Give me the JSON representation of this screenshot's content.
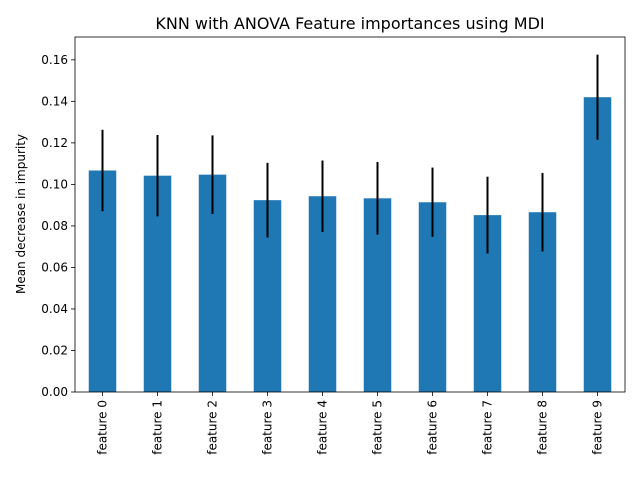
{
  "chart_data": {
    "type": "bar",
    "title": "KNN with ANOVA Feature importances using MDI",
    "xlabel": "",
    "ylabel": "Mean decrease in impurity",
    "categories": [
      "feature 0",
      "feature 1",
      "feature 2",
      "feature 3",
      "feature 4",
      "feature 5",
      "feature 6",
      "feature 7",
      "feature 8",
      "feature 9"
    ],
    "values": [
      0.1067,
      0.1042,
      0.1047,
      0.0924,
      0.0943,
      0.0933,
      0.0914,
      0.0852,
      0.0866,
      0.142
    ],
    "error": [
      0.0196,
      0.0196,
      0.0189,
      0.018,
      0.0172,
      0.0175,
      0.0167,
      0.0185,
      0.0189,
      0.0205
    ],
    "ylim": [
      0,
      0.171
    ],
    "yticks": [
      0.0,
      0.02,
      0.04,
      0.06,
      0.08,
      0.1,
      0.12,
      0.14,
      0.16
    ],
    "bar_color": "#1f77b4",
    "error_color": "#000000",
    "grid": false,
    "legend": "none"
  }
}
